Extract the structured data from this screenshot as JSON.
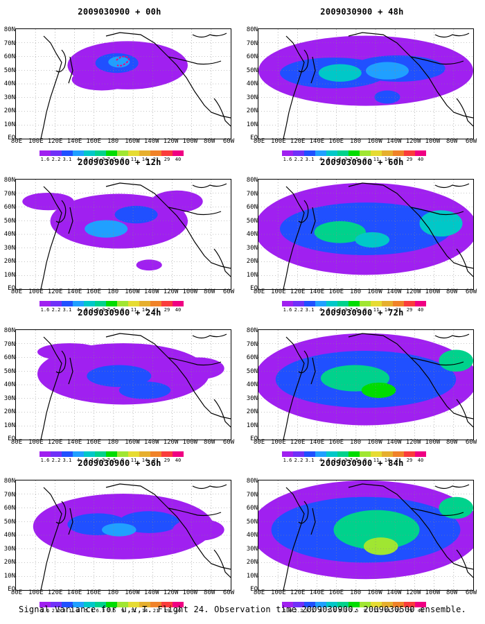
{
  "caption": "Signal Variance for u,v,T. Flight 24. Observation time 2009030900. 2009030500 ensemble.",
  "lat_labels": [
    "80N",
    "70N",
    "60N",
    "50N",
    "40N",
    "30N",
    "20N",
    "10N",
    "EQ"
  ],
  "lon_labels": [
    "80E",
    "100E",
    "120E",
    "140E",
    "160E",
    "180",
    "160W",
    "140W",
    "120W",
    "100W",
    "80W",
    "60W"
  ],
  "colorbar_values": [
    "1.6",
    "2.2",
    "3.1",
    "4",
    "5.1",
    "6.3",
    "7.5",
    "9",
    "11",
    "14",
    "21",
    "29",
    "40"
  ],
  "colorbar_colors": [
    "#a020f0",
    "#7030f8",
    "#2050ff",
    "#20a0ff",
    "#00c8c8",
    "#00d28c",
    "#00dc00",
    "#a0e632",
    "#e6dc32",
    "#e6af2d",
    "#f08228",
    "#fa3c3c",
    "#f00082"
  ],
  "panels": [
    {
      "title": "2009030900 + 00h",
      "lead": "00h"
    },
    {
      "title": "2009030900 + 48h",
      "lead": "48h"
    },
    {
      "title": "2009030900 + 12h",
      "lead": "12h"
    },
    {
      "title": "2009030900 + 60h",
      "lead": "60h"
    },
    {
      "title": "2009030900 + 24h",
      "lead": "24h"
    },
    {
      "title": "2009030900 + 72h",
      "lead": "72h"
    },
    {
      "title": "2009030900 + 36h",
      "lead": "36h"
    },
    {
      "title": "2009030900 + 84h",
      "lead": "84h"
    }
  ],
  "chart_data": {
    "type": "heatmap",
    "description_units": "signal variance (u,v,T)",
    "xrange": [
      "80E",
      "60W"
    ],
    "yrange": [
      "EQ",
      "80N"
    ],
    "grid": true,
    "levels": [
      1.6,
      2.2,
      3.1,
      4,
      5.1,
      6.3,
      7.5,
      9,
      11,
      14,
      21,
      29,
      40
    ]
  }
}
